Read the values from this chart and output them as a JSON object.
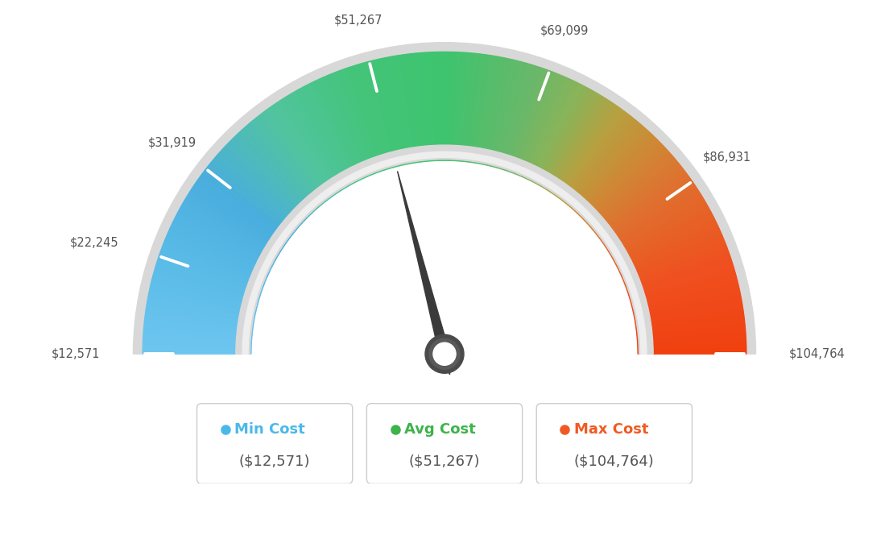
{
  "min_value": 12571,
  "max_value": 104764,
  "avg_value": 51267,
  "tick_labels": [
    "$12,571",
    "$22,245",
    "$31,919",
    "$51,267",
    "$69,099",
    "$86,931",
    "$104,764"
  ],
  "tick_values": [
    12571,
    22245,
    31919,
    51267,
    69099,
    86931,
    104764
  ],
  "legend": [
    {
      "label": "Min Cost",
      "value": "($12,571)",
      "color": "#4ab9e8"
    },
    {
      "label": "Avg Cost",
      "value": "($51,267)",
      "color": "#3db34a"
    },
    {
      "label": "Max Cost",
      "value": "($104,764)",
      "color": "#f05a22"
    }
  ],
  "needle_value": 51267,
  "bg_color": "#ffffff",
  "color_stops": [
    [
      0.0,
      "#6ec6f0"
    ],
    [
      0.1,
      "#5bbce8"
    ],
    [
      0.2,
      "#4aaede"
    ],
    [
      0.3,
      "#52c4a0"
    ],
    [
      0.4,
      "#44c47a"
    ],
    [
      0.5,
      "#3ec46e"
    ],
    [
      0.6,
      "#6ab86a"
    ],
    [
      0.65,
      "#8ab45a"
    ],
    [
      0.7,
      "#b8a040"
    ],
    [
      0.75,
      "#d08835"
    ],
    [
      0.8,
      "#e07030"
    ],
    [
      0.85,
      "#e86025"
    ],
    [
      0.9,
      "#f05020"
    ],
    [
      1.0,
      "#f04010"
    ]
  ]
}
